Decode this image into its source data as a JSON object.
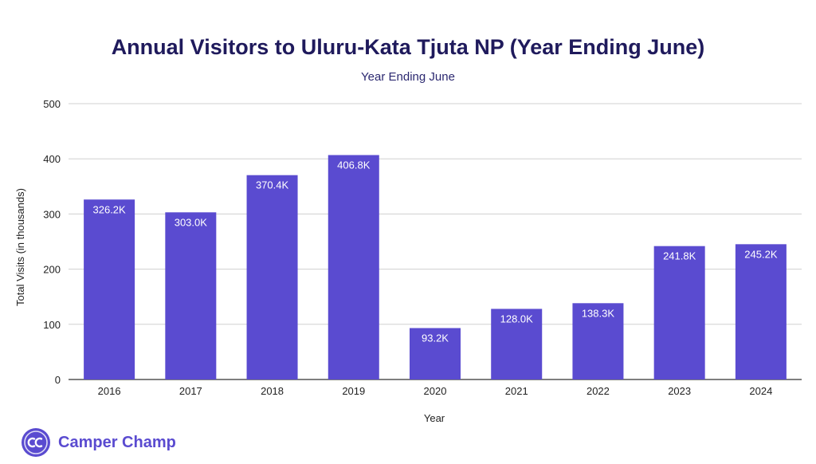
{
  "title": "Annual Visitors to Uluru-Kata Tjuta NP (Year Ending June)",
  "subtitle": "Year Ending June",
  "brand": {
    "name": "Camper Champ",
    "logo_icon": "camper-champ-logo-icon",
    "color": "#5a4bd0"
  },
  "chart_data": {
    "type": "bar",
    "title": "Annual Visitors to Uluru-Kata Tjuta NP (Year Ending June)",
    "subtitle": "Year Ending June",
    "xlabel": "Year",
    "ylabel": "Total Visits (in thousands)",
    "ylim": [
      0,
      500
    ],
    "yticks": [
      0,
      100,
      200,
      300,
      400,
      500
    ],
    "grid": true,
    "bar_color": "#5a4bd0",
    "categories": [
      "2016",
      "2017",
      "2018",
      "2019",
      "2020",
      "2021",
      "2022",
      "2023",
      "2024"
    ],
    "values": [
      326.2,
      303.0,
      370.4,
      406.8,
      93.2,
      128.0,
      138.3,
      241.8,
      245.2
    ],
    "data_labels": [
      "326.2K",
      "303.0K",
      "370.4K",
      "406.8K",
      "93.2K",
      "128.0K",
      "138.3K",
      "241.8K",
      "245.2K"
    ]
  }
}
